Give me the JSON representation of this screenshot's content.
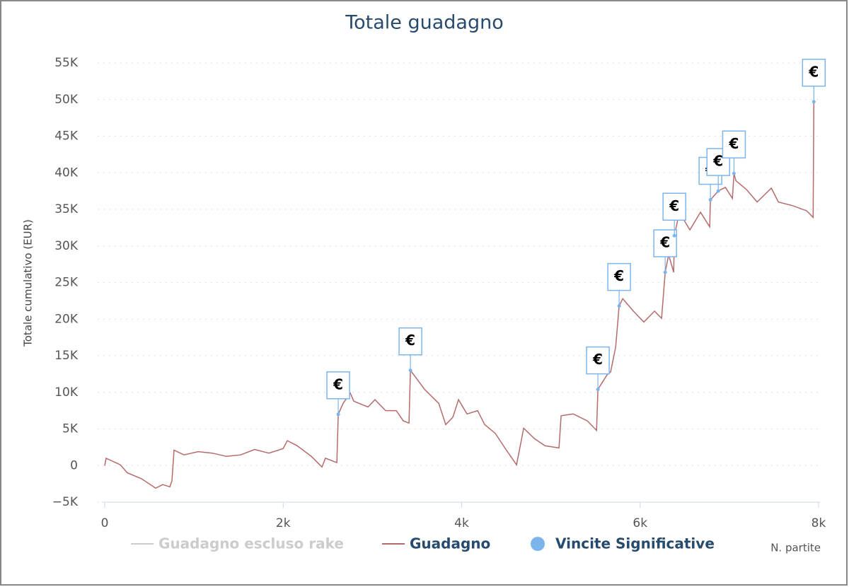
{
  "chart_data": {
    "type": "line",
    "title": "Totale guadagno",
    "y_label": "Totale cumulativo (EUR)",
    "x_label": "N. partite",
    "xlim": [
      0,
      8000
    ],
    "xticks": [
      0,
      {
        "value": 2000,
        "label": "2k"
      },
      {
        "value": 4000,
        "label": "4k"
      },
      {
        "value": 6000,
        "label": "6k"
      },
      {
        "value": 8000,
        "label": "8k"
      }
    ],
    "ylim": [
      -5000,
      55000
    ],
    "yticks": [
      {
        "value": -5000,
        "label": "−5K"
      },
      0,
      {
        "value": 5000,
        "label": "5K"
      },
      {
        "value": 10000,
        "label": "10K"
      },
      {
        "value": 15000,
        "label": "15K"
      },
      {
        "value": 20000,
        "label": "20K"
      },
      {
        "value": 25000,
        "label": "25K"
      },
      {
        "value": 30000,
        "label": "30K"
      },
      {
        "value": 35000,
        "label": "35K"
      },
      {
        "value": 40000,
        "label": "40K"
      },
      {
        "value": 45000,
        "label": "45K"
      },
      {
        "value": 50000,
        "label": "50K"
      },
      {
        "value": 55000,
        "label": "55K"
      }
    ],
    "grid": true,
    "series": [
      {
        "name": "Guadagno escluso rake",
        "color": "#cccccc",
        "visible": false
      },
      {
        "name": "Guadagno",
        "color": "#b56b6b",
        "x": [
          0,
          16,
          175,
          254,
          412,
          571,
          650,
          730,
          753,
          777,
          888,
          1047,
          1205,
          1364,
          1523,
          1681,
          1840,
          1999,
          2046,
          2157,
          2316,
          2435,
          2474,
          2601,
          2617,
          2672,
          2752,
          2791,
          2950,
          3029,
          3148,
          3267,
          3346,
          3410,
          3426,
          3585,
          3743,
          3822,
          3902,
          3965,
          4060,
          4179,
          4258,
          4377,
          4496,
          4615,
          4695,
          4814,
          4933,
          5091,
          5115,
          5250,
          5409,
          5512,
          5527,
          5630,
          5670,
          5726,
          5765,
          5805,
          5924,
          6042,
          6161,
          6241,
          6281,
          6320,
          6376,
          6384,
          6440,
          6558,
          6677,
          6780,
          6788,
          6876,
          6955,
          7034,
          7052,
          7074,
          7193,
          7312,
          7470,
          7550,
          7709,
          7867,
          7939,
          7947
        ],
        "values": [
          0,
          1000,
          100,
          -1000,
          -1800,
          -3100,
          -2600,
          -2900,
          -2100,
          2100,
          1450,
          1900,
          1700,
          1250,
          1450,
          2200,
          1700,
          2300,
          3400,
          2700,
          1250,
          -200,
          1000,
          400,
          7000,
          8500,
          9900,
          8800,
          8000,
          9000,
          7500,
          7500,
          6100,
          5800,
          13000,
          10400,
          8500,
          5600,
          6600,
          9000,
          7050,
          7500,
          5600,
          4400,
          2200,
          100,
          5100,
          3700,
          2700,
          2400,
          6800,
          7050,
          6100,
          4800,
          10400,
          12400,
          12800,
          16200,
          21800,
          22800,
          21100,
          19600,
          21100,
          20100,
          26400,
          28800,
          26400,
          31400,
          34600,
          32200,
          34600,
          32600,
          36300,
          37500,
          38000,
          36500,
          39900,
          38900,
          37700,
          36000,
          37900,
          36000,
          35500,
          34800,
          33900,
          49700
        ]
      },
      {
        "name": "Vincite Significative",
        "type": "scatter",
        "color": "#7cb5ec",
        "flag": "€",
        "x": [
          2617,
          3426,
          5527,
          5765,
          6281,
          6384,
          6788,
          6876,
          7052,
          7947
        ],
        "values": [
          7000,
          13000,
          10400,
          21800,
          26400,
          31400,
          36300,
          37500,
          39900,
          49700
        ]
      }
    ]
  }
}
